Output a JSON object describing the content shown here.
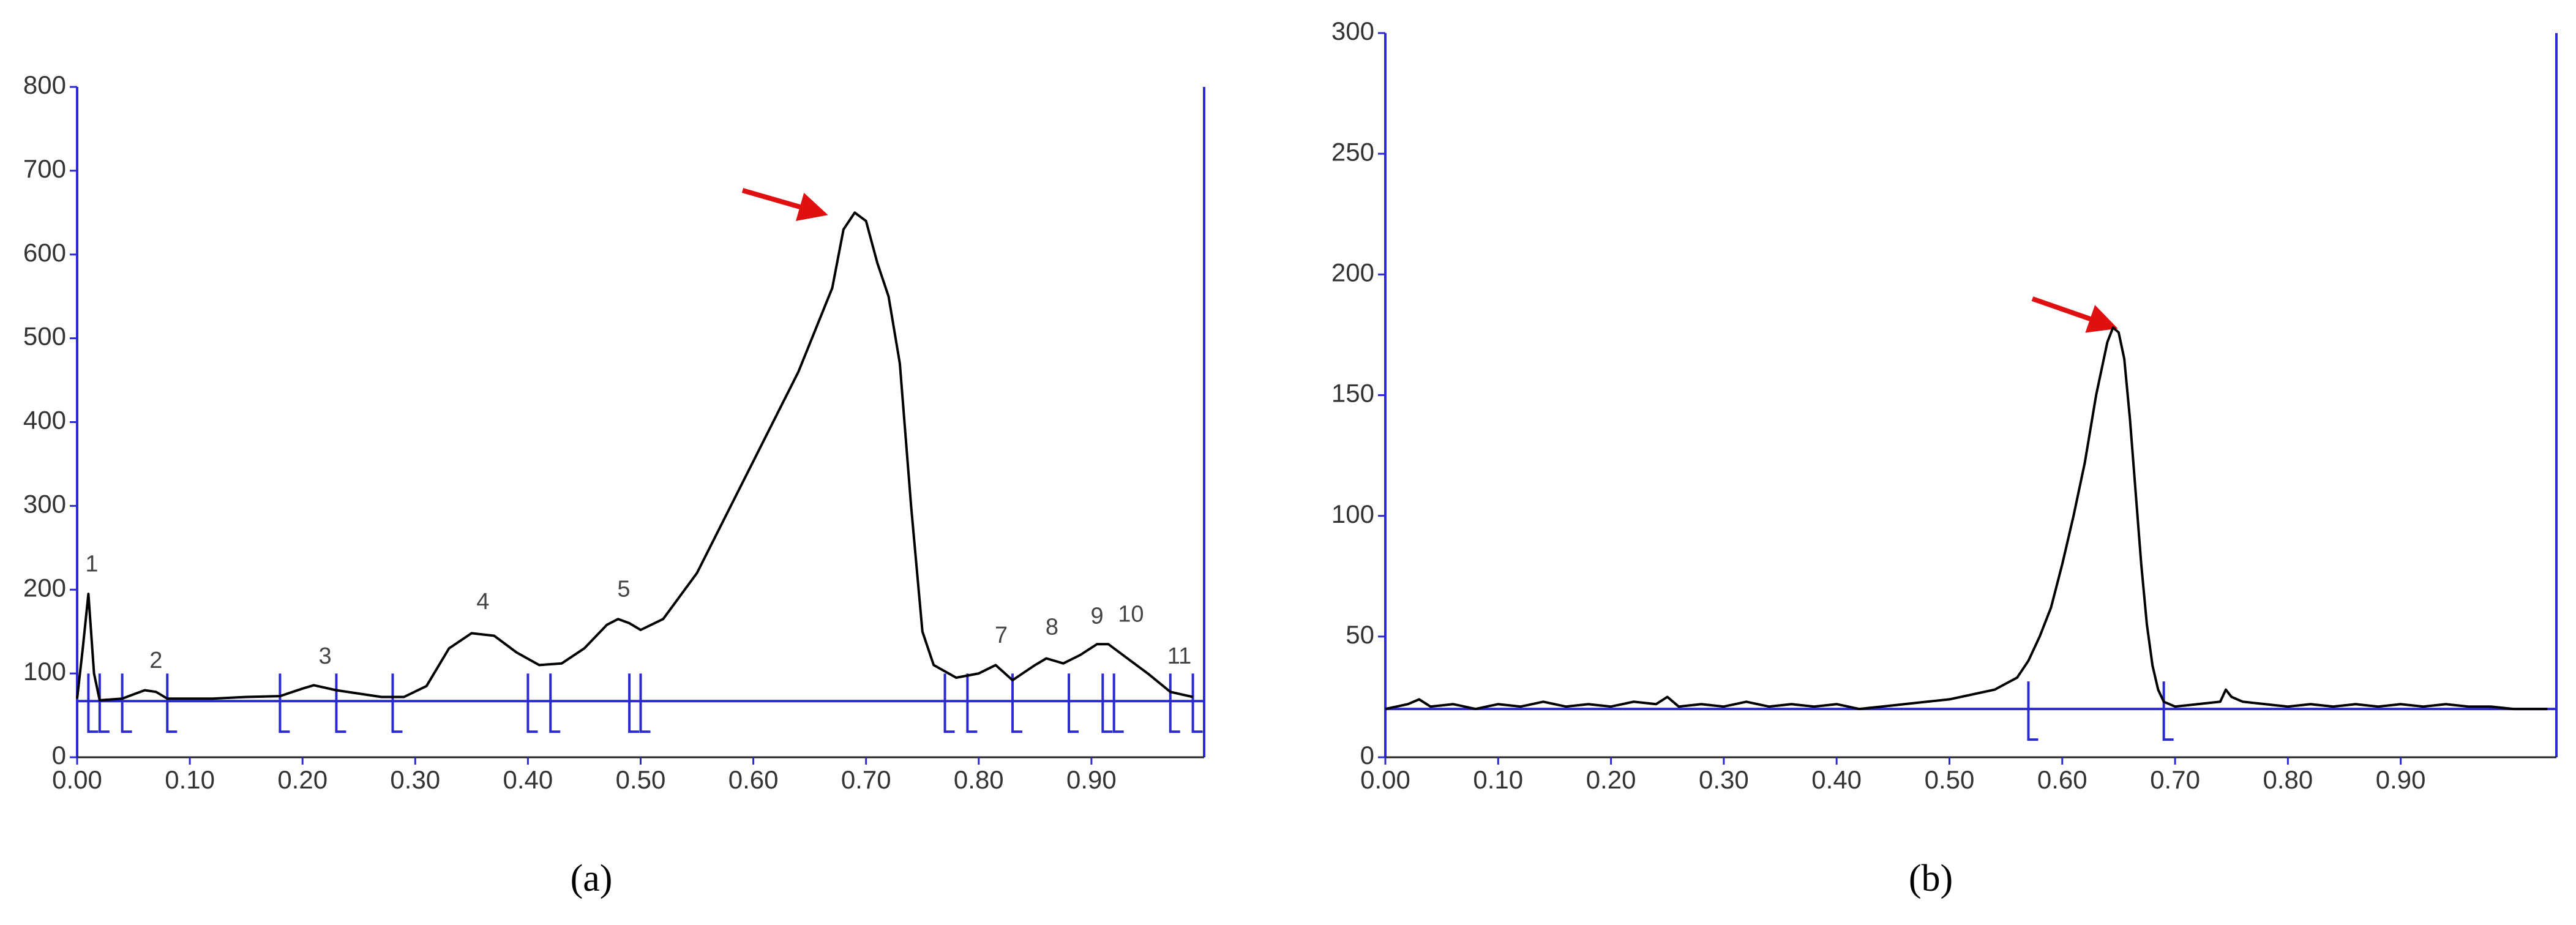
{
  "chart_data": [
    {
      "type": "line",
      "caption": "(a)",
      "color": "#000000",
      "axis_color": "#2a2ad0",
      "x": [
        0,
        0.005,
        0.01,
        0.015,
        0.02,
        0.04,
        0.05,
        0.06,
        0.07,
        0.08,
        0.1,
        0.12,
        0.15,
        0.18,
        0.2,
        0.21,
        0.23,
        0.25,
        0.27,
        0.29,
        0.31,
        0.33,
        0.35,
        0.37,
        0.39,
        0.41,
        0.43,
        0.45,
        0.47,
        0.48,
        0.49,
        0.5,
        0.52,
        0.55,
        0.58,
        0.61,
        0.64,
        0.67,
        0.68,
        0.69,
        0.7,
        0.71,
        0.72,
        0.73,
        0.74,
        0.75,
        0.76,
        0.78,
        0.8,
        0.815,
        0.83,
        0.85,
        0.86,
        0.875,
        0.89,
        0.905,
        0.915,
        0.93,
        0.95,
        0.97,
        0.99
      ],
      "values": [
        70,
        130,
        195,
        100,
        68,
        70,
        75,
        80,
        78,
        70,
        70,
        70,
        72,
        73,
        82,
        86,
        80,
        76,
        72,
        72,
        85,
        130,
        148,
        145,
        125,
        110,
        112,
        130,
        158,
        165,
        160,
        152,
        165,
        220,
        300,
        380,
        460,
        560,
        630,
        650,
        640,
        590,
        550,
        470,
        300,
        150,
        110,
        95,
        100,
        110,
        92,
        110,
        118,
        112,
        122,
        135,
        135,
        120,
        100,
        78,
        72
      ],
      "baseline": 67,
      "boundaries": [
        0.01,
        0.02,
        0.04,
        0.08,
        0.18,
        0.23,
        0.28,
        0.4,
        0.42,
        0.49,
        0.5,
        0.77,
        0.79,
        0.83,
        0.88,
        0.91,
        0.92,
        0.97,
        0.99
      ],
      "peaks": [
        {
          "label": "1",
          "x": 0.013,
          "y": 210
        },
        {
          "label": "2",
          "x": 0.07,
          "y": 95
        },
        {
          "label": "3",
          "x": 0.22,
          "y": 100
        },
        {
          "label": "4",
          "x": 0.36,
          "y": 165
        },
        {
          "label": "5",
          "x": 0.485,
          "y": 180
        },
        {
          "label": "7",
          "x": 0.82,
          "y": 125
        },
        {
          "label": "8",
          "x": 0.865,
          "y": 135
        },
        {
          "label": "9",
          "x": 0.905,
          "y": 148
        },
        {
          "label": "10",
          "x": 0.935,
          "y": 150
        },
        {
          "label": "11",
          "x": 0.978,
          "y": 100
        }
      ],
      "xlim": [
        0,
        1.0
      ],
      "ylim": [
        0,
        800
      ],
      "xticks": [
        {
          "value": 0,
          "label": "0.00"
        },
        {
          "value": 0.1,
          "label": "0.10"
        },
        {
          "value": 0.2,
          "label": "0.20"
        },
        {
          "value": 0.3,
          "label": "0.30"
        },
        {
          "value": 0.4,
          "label": "0.40"
        },
        {
          "value": 0.5,
          "label": "0.50"
        },
        {
          "value": 0.6,
          "label": "0.60"
        },
        {
          "value": 0.7,
          "label": "0.70"
        },
        {
          "value": 0.8,
          "label": "0.80"
        },
        {
          "value": 0.9,
          "label": "0.90"
        }
      ],
      "yticks": [
        0,
        100,
        200,
        300,
        400,
        500,
        600,
        700,
        800
      ]
    },
    {
      "type": "line",
      "caption": "(b)",
      "color": "#000000",
      "axis_color": "#2a2ad0",
      "x": [
        0,
        0.01,
        0.02,
        0.03,
        0.04,
        0.06,
        0.08,
        0.1,
        0.12,
        0.14,
        0.16,
        0.18,
        0.2,
        0.22,
        0.24,
        0.25,
        0.26,
        0.28,
        0.3,
        0.32,
        0.34,
        0.36,
        0.38,
        0.4,
        0.42,
        0.44,
        0.46,
        0.48,
        0.5,
        0.52,
        0.54,
        0.56,
        0.57,
        0.58,
        0.59,
        0.6,
        0.61,
        0.62,
        0.63,
        0.64,
        0.645,
        0.65,
        0.655,
        0.66,
        0.665,
        0.67,
        0.675,
        0.68,
        0.685,
        0.69,
        0.7,
        0.72,
        0.74,
        0.745,
        0.75,
        0.76,
        0.78,
        0.8,
        0.82,
        0.84,
        0.86,
        0.88,
        0.9,
        0.92,
        0.94,
        0.96,
        0.98,
        1.0,
        1.03
      ],
      "values": [
        20,
        21,
        22,
        24,
        21,
        22,
        20,
        22,
        21,
        23,
        21,
        22,
        21,
        23,
        22,
        25,
        21,
        22,
        21,
        23,
        21,
        22,
        21,
        22,
        20,
        21,
        22,
        23,
        24,
        26,
        28,
        33,
        40,
        50,
        62,
        80,
        100,
        122,
        150,
        172,
        178,
        176,
        165,
        140,
        110,
        80,
        55,
        38,
        28,
        23,
        21,
        22,
        23,
        28,
        25,
        23,
        22,
        21,
        22,
        21,
        22,
        21,
        22,
        21,
        22,
        21,
        21,
        20,
        20
      ],
      "baseline": 20,
      "boundaries": [
        0.57,
        0.69
      ],
      "peaks": [],
      "xlim": [
        0,
        1.038
      ],
      "ylim": [
        0,
        300
      ],
      "xticks": [
        {
          "value": 0,
          "label": "0.00"
        },
        {
          "value": 0.1,
          "label": "0.10"
        },
        {
          "value": 0.2,
          "label": "0.20"
        },
        {
          "value": 0.3,
          "label": "0.30"
        },
        {
          "value": 0.4,
          "label": "0.40"
        },
        {
          "value": 0.5,
          "label": "0.50"
        },
        {
          "value": 0.6,
          "label": "0.60"
        },
        {
          "value": 0.7,
          "label": "0.70"
        },
        {
          "value": 0.8,
          "label": "0.80"
        },
        {
          "value": 0.9,
          "label": "0.90"
        }
      ],
      "yticks": [
        0,
        50,
        100,
        150,
        200,
        250,
        300
      ]
    }
  ]
}
